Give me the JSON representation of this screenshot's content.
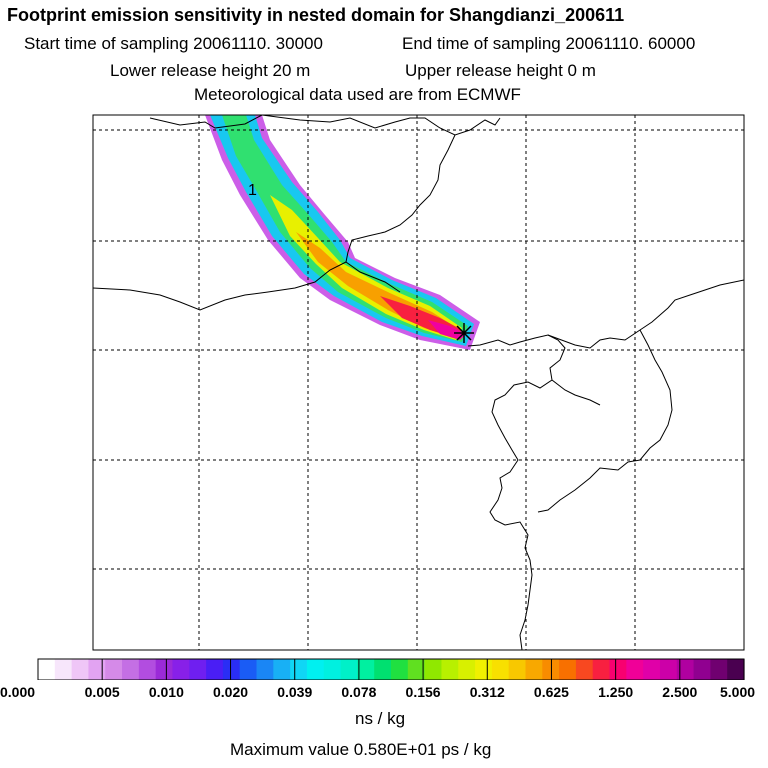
{
  "title": "Footprint emission sensitivity in nested domain for Shangdianzi_200611",
  "start_time": "Start time of sampling 20061110. 30000",
  "end_time": "End time of sampling 20061110. 60000",
  "lower_height": "Lower release height   20 m",
  "upper_height": "Upper release height    0 m",
  "met_data": "Meteorological data used are from ECMWF",
  "map": {
    "contour_label": "1",
    "station_marker": "station-star-icon"
  },
  "colorbar": {
    "ticks": [
      "0.000",
      "0.005",
      "0.010",
      "0.020",
      "0.039",
      "0.078",
      "0.156",
      "0.312",
      "0.625",
      "1.250",
      "2.500",
      "5.000"
    ],
    "colors": [
      "#ffffff",
      "#f7e6fb",
      "#efc6f7",
      "#e2a3f2",
      "#d58ae8",
      "#c46fe4",
      "#b24de0",
      "#9b2ad8",
      "#8820e8",
      "#6f1ff0",
      "#4a1ef5",
      "#2a2ef5",
      "#1a5cf5",
      "#1a86f5",
      "#18b0f5",
      "#10d6f5",
      "#00f0f0",
      "#00f0e0",
      "#00f0c8",
      "#00f0a0",
      "#00e070",
      "#20e040",
      "#60e020",
      "#90e800",
      "#b8f000",
      "#d8f000",
      "#f0f000",
      "#f8e000",
      "#f8c800",
      "#f8a800",
      "#f88c00",
      "#f87000",
      "#f84820",
      "#f82040",
      "#f80070",
      "#f00098",
      "#e000a8",
      "#cc00a8",
      "#b000a0",
      "#900090",
      "#700070",
      "#4a0050"
    ],
    "units": "ns / kg"
  },
  "max_value": "Maximum value  0.580E+01 ps / kg"
}
